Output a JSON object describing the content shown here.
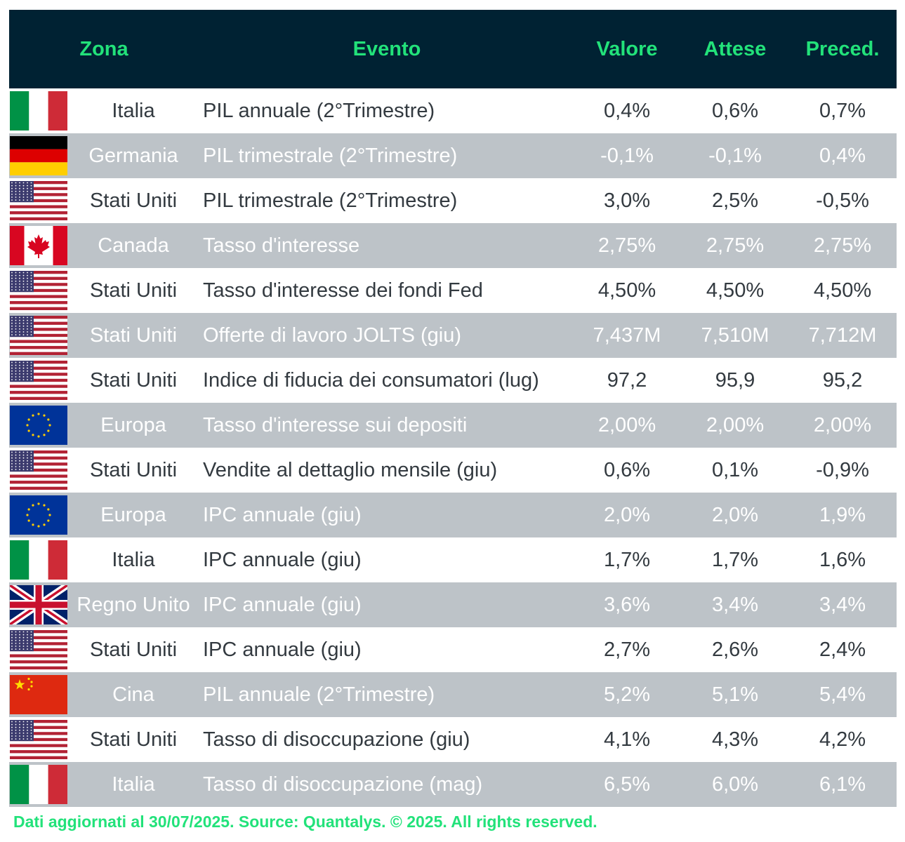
{
  "header": {
    "zona": "Zona",
    "evento": "Evento",
    "valore": "Valore",
    "attese": "Attese",
    "preced": "Preced."
  },
  "rows": [
    {
      "flag": "italy-flag-icon",
      "zona": "Italia",
      "evento": "PIL annuale (2°Trimestre)",
      "valore": "0,4%",
      "attese": "0,6%",
      "preced": "0,7%"
    },
    {
      "flag": "germany-flag-icon",
      "zona": "Germania",
      "evento": "PIL trimestrale (2°Trimestre)",
      "valore": "-0,1%",
      "attese": "-0,1%",
      "preced": "0,4%"
    },
    {
      "flag": "usa-flag-icon",
      "zona": "Stati Uniti",
      "evento": "PIL trimestrale (2°Trimestre)",
      "valore": "3,0%",
      "attese": "2,5%",
      "preced": "-0,5%"
    },
    {
      "flag": "canada-flag-icon",
      "zona": "Canada",
      "evento": "Tasso d'interesse",
      "valore": "2,75%",
      "attese": "2,75%",
      "preced": "2,75%"
    },
    {
      "flag": "usa-flag-icon",
      "zona": "Stati Uniti",
      "evento": "Tasso d'interesse dei fondi Fed",
      "valore": "4,50%",
      "attese": "4,50%",
      "preced": "4,50%"
    },
    {
      "flag": "usa-flag-icon",
      "zona": "Stati Uniti",
      "evento": "Offerte di lavoro JOLTS (giu)",
      "valore": "7,437M",
      "attese": "7,510M",
      "preced": "7,712M"
    },
    {
      "flag": "usa-flag-icon",
      "zona": "Stati Uniti",
      "evento": "Indice di fiducia dei consumatori (lug)",
      "valore": "97,2",
      "attese": "95,9",
      "preced": "95,2"
    },
    {
      "flag": "eu-flag-icon",
      "zona": "Europa",
      "evento": "Tasso d'interesse sui depositi",
      "valore": "2,00%",
      "attese": "2,00%",
      "preced": "2,00%"
    },
    {
      "flag": "usa-flag-icon",
      "zona": "Stati Uniti",
      "evento": "Vendite al dettaglio mensile (giu)",
      "valore": "0,6%",
      "attese": "0,1%",
      "preced": "-0,9%"
    },
    {
      "flag": "eu-flag-icon",
      "zona": "Europa",
      "evento": "IPC annuale (giu)",
      "valore": "2,0%",
      "attese": "2,0%",
      "preced": "1,9%"
    },
    {
      "flag": "italy-flag-icon",
      "zona": "Italia",
      "evento": "IPC annuale (giu)",
      "valore": "1,7%",
      "attese": "1,7%",
      "preced": "1,6%"
    },
    {
      "flag": "uk-flag-icon",
      "zona": "Regno Unito",
      "evento": "IPC annuale (giu)",
      "valore": "3,6%",
      "attese": "3,4%",
      "preced": "3,4%"
    },
    {
      "flag": "usa-flag-icon",
      "zona": "Stati Uniti",
      "evento": "IPC annuale (giu)",
      "valore": "2,7%",
      "attese": "2,6%",
      "preced": "2,4%"
    },
    {
      "flag": "china-flag-icon",
      "zona": "Cina",
      "evento": "PIL annuale (2°Trimestre)",
      "valore": "5,2%",
      "attese": "5,1%",
      "preced": "5,4%"
    },
    {
      "flag": "usa-flag-icon",
      "zona": "Stati Uniti",
      "evento": "Tasso di disoccupazione (giu)",
      "valore": "4,1%",
      "attese": "4,3%",
      "preced": "4,2%"
    },
    {
      "flag": "italy-flag-icon",
      "zona": "Italia",
      "evento": "Tasso di disoccupazione (mag)",
      "valore": "6,5%",
      "attese": "6,0%",
      "preced": "6,1%"
    }
  ],
  "colors": {
    "header_bg": "#002233",
    "header_text": "#22e27a",
    "row_alt_bg": "#bdc3c8",
    "row_text": "#333a40",
    "footer_text": "#22e27a"
  },
  "footer": "Dati aggiornati al 30/07/2025. Source: Quantalys. © 2025. All rights reserved."
}
